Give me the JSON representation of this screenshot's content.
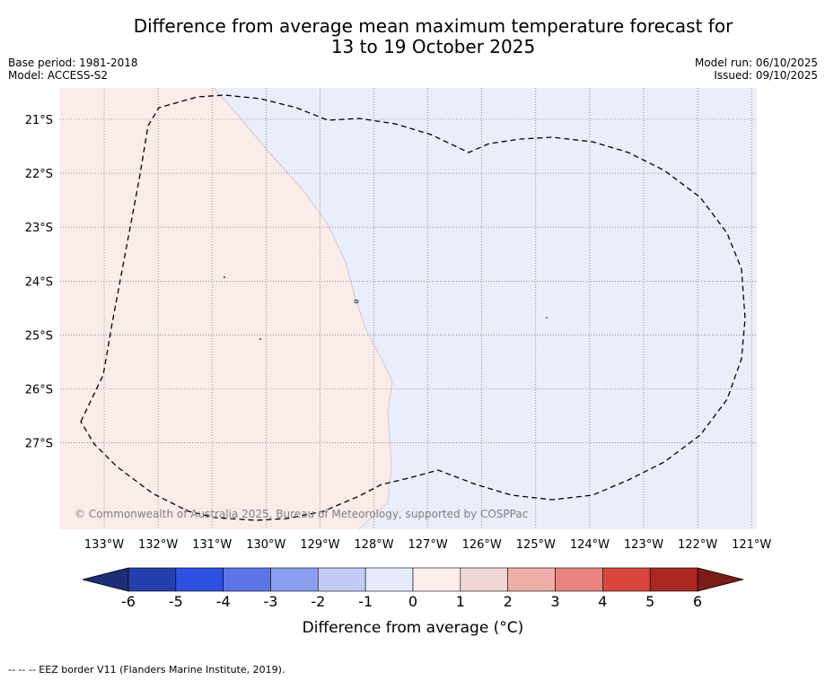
{
  "title_line1": "Difference from average mean maximum temperature forecast for",
  "title_line2": "13 to 19 October 2025",
  "base_period": "Base period: 1981-2018",
  "model": "Model: ACCESS-S2",
  "model_run": "Model run: 06/10/2025",
  "issued": "Issued: 09/10/2025",
  "lat_labels": [
    "21°S",
    "22°S",
    "23°S",
    "24°S",
    "25°S",
    "26°S",
    "27°S"
  ],
  "lon_labels": [
    "133°W",
    "132°W",
    "131°W",
    "130°W",
    "129°W",
    "128°W",
    "127°W",
    "126°W",
    "125°W",
    "124°W",
    "123°W",
    "122°W",
    "121°W"
  ],
  "copyright": "© Commonwealth of Australia 2025, Bureau of Meteorology, supported by COSPPac",
  "colorbar": {
    "ticks": [
      "-6",
      "-5",
      "-4",
      "-3",
      "-2",
      "-1",
      "0",
      "1",
      "2",
      "3",
      "4",
      "5",
      "6"
    ],
    "colors": [
      "#2440ad",
      "#2e50e0",
      "#5b74e6",
      "#8a9ef0",
      "#c2caf6",
      "#e8ebfb",
      "#fdeeec",
      "#f0d6d4",
      "#efaea8",
      "#e8857e",
      "#d9473c",
      "#ab2821"
    ],
    "extend_low_color": "#1d2d78",
    "extend_high_color": "#7a1d18",
    "title": "Difference from average (°C)"
  },
  "map_fill_colors": {
    "warm": "#fbecea",
    "cool": "#eaedfb"
  },
  "footer": "-- -- -- EEZ border V11 (Flanders Marine Institute, 2019)."
}
